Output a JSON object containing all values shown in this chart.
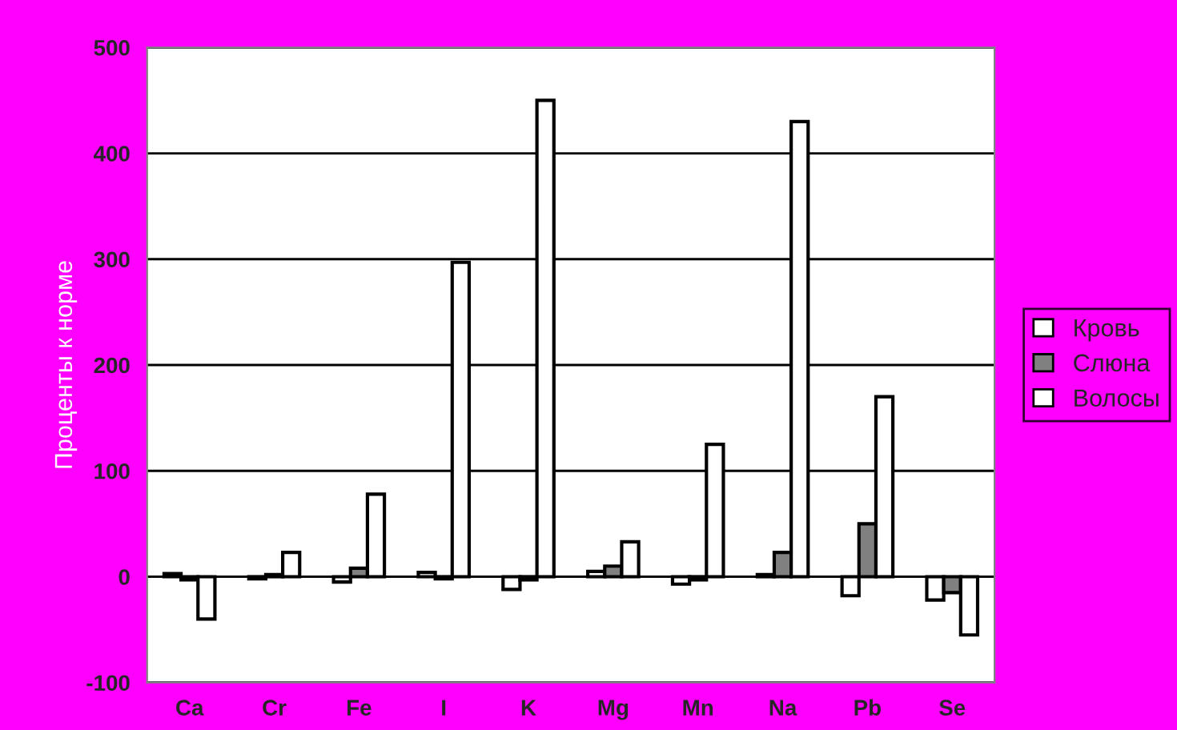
{
  "chart_data": {
    "type": "bar",
    "ylabel": "Проценты к норме",
    "categories": [
      "Ca",
      "Cr",
      "Fe",
      "I",
      "K",
      "Mg",
      "Mn",
      "Na",
      "Pb",
      "Se"
    ],
    "series": [
      {
        "name": "Кровь",
        "color": "#ffffff",
        "values": [
          3,
          -2,
          -5,
          4,
          -12,
          5,
          -7,
          2,
          -18,
          -22
        ]
      },
      {
        "name": "Слюна",
        "color": "#808080",
        "values": [
          -3,
          2,
          8,
          -2,
          -3,
          10,
          -3,
          23,
          50,
          -15
        ]
      },
      {
        "name": "Волосы",
        "color": "#ffffff",
        "values": [
          -40,
          23,
          78,
          297,
          450,
          33,
          125,
          430,
          170,
          -55
        ]
      }
    ],
    "ylim": [
      -100,
      500
    ],
    "yticks": [
      -100,
      0,
      100,
      200,
      300,
      400,
      500
    ],
    "grid": "y",
    "legend": "right"
  }
}
